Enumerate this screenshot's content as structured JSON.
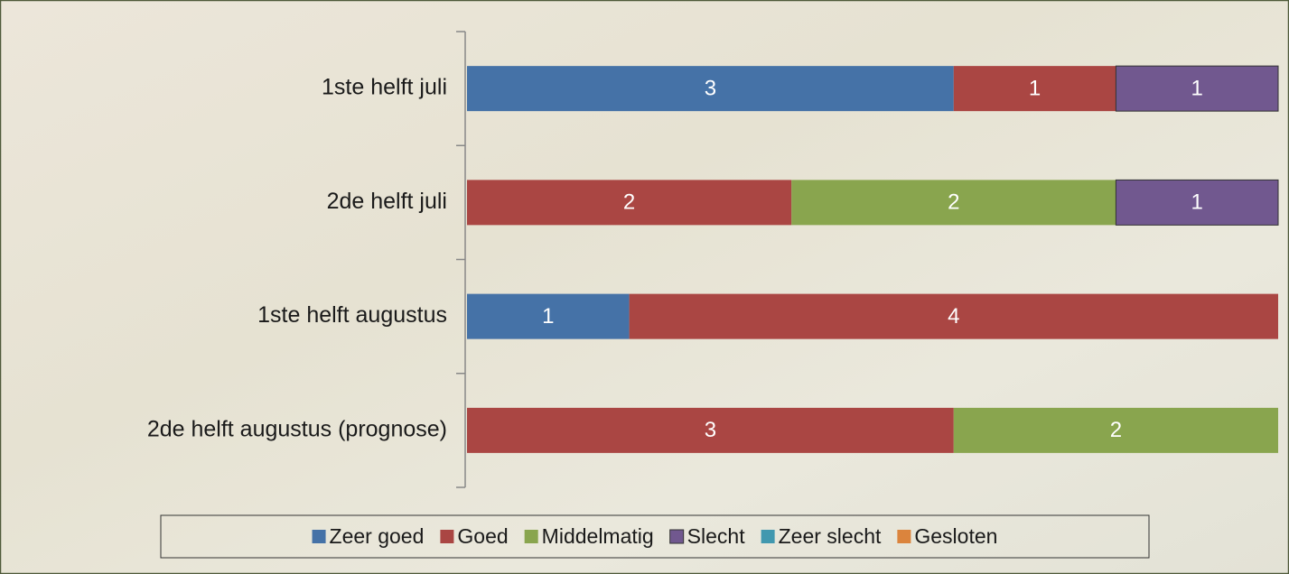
{
  "chart_data": {
    "type": "stacked-bar-horizontal",
    "categories": [
      "1ste helft juli",
      "2de helft juli",
      "1ste helft augustus",
      "2de helft augustus (prognose)"
    ],
    "series": [
      {
        "name": "Zeer goed",
        "color": "#4572a7",
        "values": [
          3,
          null,
          1,
          null
        ]
      },
      {
        "name": "Goed",
        "color": "#aa4643",
        "values": [
          1,
          2,
          4,
          3
        ]
      },
      {
        "name": "Middelmatig",
        "color": "#89a54e",
        "values": [
          null,
          2,
          null,
          2
        ]
      },
      {
        "name": "Slecht",
        "color": "#71588f",
        "values": [
          1,
          1,
          null,
          null
        ]
      },
      {
        "name": "Zeer slecht",
        "color": "#4198af",
        "values": [
          null,
          null,
          null,
          null
        ]
      },
      {
        "name": "Gesloten",
        "color": "#db843d",
        "values": [
          null,
          null,
          null,
          null
        ]
      }
    ],
    "legend": "bottom"
  }
}
